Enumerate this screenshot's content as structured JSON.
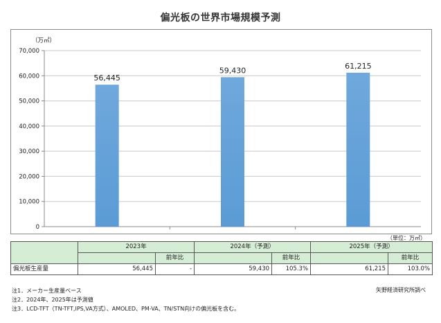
{
  "title": "偏光板の世界市場規模予測",
  "chart_data": {
    "type": "bar",
    "title": "偏光板の世界市場規模予測",
    "y_unit": "（万㎡）",
    "categories": [
      "2023年",
      "2024年（予測）",
      "2025年（予測）"
    ],
    "values": [
      56445,
      59430,
      61215
    ],
    "data_labels": [
      "56,445",
      "59,430",
      "61,215"
    ],
    "ylim": [
      0,
      70000
    ],
    "yticks": [
      "0",
      "10,000",
      "20,000",
      "30,000",
      "40,000",
      "50,000",
      "60,000",
      "70,000"
    ],
    "grid": true,
    "bar_color": "#5b9bd5"
  },
  "unit_note": "（単位：万㎡）",
  "table": {
    "years": [
      "2023年",
      "2024年（予測）",
      "2025年（予測）"
    ],
    "sub_header": "前年比",
    "row_label": "偏光板生産量",
    "cells": [
      "56,445",
      "-",
      "59,430",
      "105.3%",
      "61,215",
      "103.0%"
    ],
    "header_color": "#d5ecd5"
  },
  "notes": [
    "注1．メーカー生産量ベース",
    "注2．2024年、2025年は予測値",
    "注3．LCD-TFT（TN-TFT,IPS,VA方式）、AMOLED、PM-VA、TN/STN向けの偏光板を含む。"
  ],
  "source": "矢野経済研究所調べ"
}
